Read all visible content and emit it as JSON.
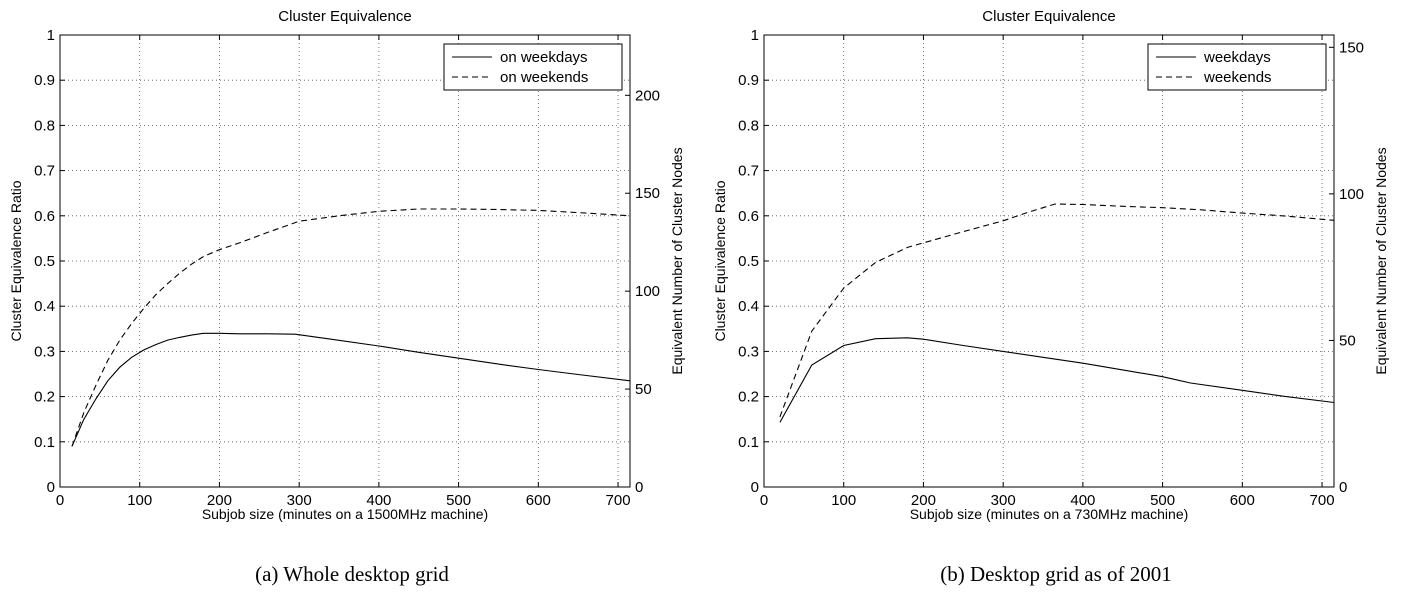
{
  "chart_data": [
    {
      "type": "line",
      "title": "Cluster Equivalence",
      "xlabel": "Subjob size (minutes on a 1500MHz machine)",
      "ylabel": "Cluster Equivalence Ratio",
      "y2label": "Equivalent Number of Cluster Nodes",
      "caption": "(a) Whole desktop grid",
      "xlim": [
        0,
        715
      ],
      "ylim": [
        0,
        1
      ],
      "y2lim": [
        0,
        230.8
      ],
      "xticks": [
        0,
        100,
        200,
        300,
        400,
        500,
        600,
        700
      ],
      "yticks": [
        0,
        0.1,
        0.2,
        0.3,
        0.4,
        0.5,
        0.6,
        0.7,
        0.8,
        0.9,
        1
      ],
      "y2ticks": [
        0,
        50,
        100,
        150,
        200
      ],
      "grid": true,
      "legend_position": "top-right",
      "series": [
        {
          "name": "on weekdays",
          "style": "solid",
          "x": [
            15,
            30,
            45,
            60,
            75,
            90,
            105,
            120,
            135,
            150,
            165,
            180,
            200,
            225,
            260,
            295,
            340,
            400,
            450,
            500,
            550,
            600,
            650,
            715
          ],
          "y": [
            0.09,
            0.15,
            0.195,
            0.235,
            0.265,
            0.287,
            0.303,
            0.315,
            0.325,
            0.331,
            0.336,
            0.34,
            0.34,
            0.339,
            0.339,
            0.338,
            0.327,
            0.312,
            0.298,
            0.285,
            0.272,
            0.26,
            0.249,
            0.235
          ]
        },
        {
          "name": "on weekends",
          "style": "dashed",
          "x": [
            15,
            30,
            45,
            60,
            75,
            90,
            105,
            120,
            135,
            150,
            165,
            180,
            200,
            225,
            260,
            300,
            350,
            400,
            450,
            500,
            550,
            600,
            650,
            715
          ],
          "y": [
            0.09,
            0.165,
            0.225,
            0.28,
            0.325,
            0.362,
            0.395,
            0.425,
            0.45,
            0.473,
            0.493,
            0.51,
            0.525,
            0.54,
            0.563,
            0.588,
            0.6,
            0.61,
            0.615,
            0.615,
            0.614,
            0.612,
            0.607,
            0.6
          ]
        }
      ]
    },
    {
      "type": "line",
      "title": "Cluster Equivalence",
      "xlabel": "Subjob size (minutes on a 730MHz machine)",
      "ylabel": "Cluster Equivalence Ratio",
      "y2label": "Equivalent Number of Cluster Nodes",
      "caption": "(b) Desktop grid as of 2001",
      "xlim": [
        0,
        715
      ],
      "ylim": [
        0,
        1
      ],
      "y2lim": [
        0,
        154.2
      ],
      "xticks": [
        0,
        100,
        200,
        300,
        400,
        500,
        600,
        700
      ],
      "yticks": [
        0,
        0.1,
        0.2,
        0.3,
        0.4,
        0.5,
        0.6,
        0.7,
        0.8,
        0.9,
        1
      ],
      "y2ticks": [
        0,
        50,
        100,
        150
      ],
      "grid": true,
      "legend_position": "top-right",
      "series": [
        {
          "name": "weekdays",
          "style": "solid",
          "x": [
            20,
            60,
            100,
            140,
            180,
            200,
            250,
            300,
            350,
            400,
            450,
            500,
            535,
            600,
            650,
            715
          ],
          "y": [
            0.143,
            0.27,
            0.313,
            0.328,
            0.33,
            0.327,
            0.313,
            0.3,
            0.287,
            0.274,
            0.259,
            0.244,
            0.23,
            0.214,
            0.201,
            0.187
          ]
        },
        {
          "name": "weekends",
          "style": "dashed",
          "x": [
            20,
            60,
            100,
            140,
            180,
            200,
            250,
            300,
            330,
            365,
            400,
            450,
            500,
            550,
            600,
            650,
            715
          ],
          "y": [
            0.155,
            0.345,
            0.44,
            0.497,
            0.53,
            0.54,
            0.565,
            0.589,
            0.607,
            0.626,
            0.625,
            0.621,
            0.618,
            0.613,
            0.606,
            0.6,
            0.59
          ]
        }
      ]
    }
  ]
}
